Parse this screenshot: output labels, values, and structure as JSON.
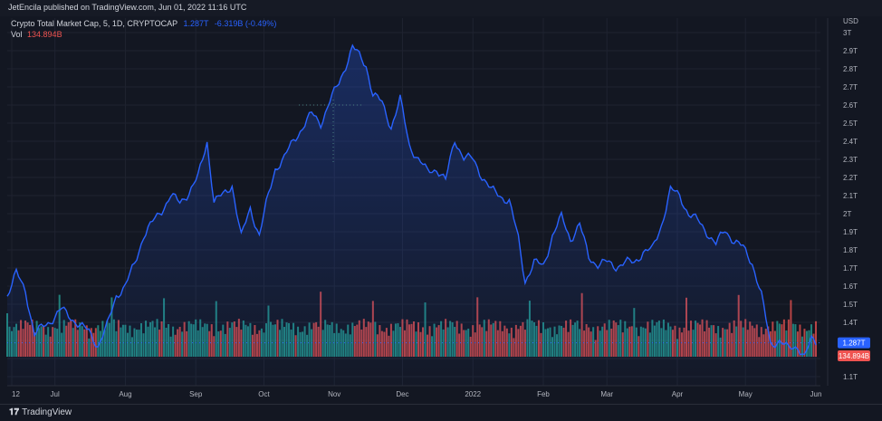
{
  "header": {
    "published": "JetEncila published on TradingView.com, Jun 01, 2022 11:16 UTC"
  },
  "legend": {
    "symbol": "Crypto Total Market Cap, 5, 1D, CRYPTOCAP",
    "price": "1.287T",
    "change": "-6.319B (-0.49%)",
    "vol_label": "Vol",
    "vol_value": "134.894B"
  },
  "footer": {
    "brand": "TradingView"
  },
  "colors": {
    "line": "#2962ff",
    "vol_up": "#26a69a",
    "vol_down": "#ef5350",
    "price_badge": "#2962ff",
    "vol_badge": "#ef5350"
  },
  "chart_data": {
    "type": "line",
    "axis_currency": "USD",
    "y_ticks": [
      "1.1T",
      "1.2T",
      "1.3T",
      "1.4T",
      "1.5T",
      "1.6T",
      "1.7T",
      "1.8T",
      "1.9T",
      "2T",
      "2.1T",
      "2.2T",
      "2.3T",
      "2.4T",
      "2.5T",
      "2.6T",
      "2.7T",
      "2.8T",
      "2.9T",
      "3T"
    ],
    "ylim": [
      1.05,
      3.08
    ],
    "x_ticks": [
      "12",
      "Jul",
      "Aug",
      "Sep",
      "Oct",
      "Nov",
      "Dec",
      "2022",
      "Feb",
      "Mar",
      "Apr",
      "May",
      "Jun"
    ],
    "x_tick_dates": [
      "2021-06-12",
      "2021-07-01",
      "2021-08-01",
      "2021-09-01",
      "2021-10-01",
      "2021-11-01",
      "2021-12-01",
      "2022-01-01",
      "2022-02-01",
      "2022-03-01",
      "2022-04-01",
      "2022-05-01",
      "2022-06-01"
    ],
    "xlim": [
      "2021-06-10",
      "2022-06-03"
    ],
    "series": [
      {
        "points": [
          [
            "2021-06-10",
            1.55
          ],
          [
            "2021-06-14",
            1.67
          ],
          [
            "2021-06-18",
            1.58
          ],
          [
            "2021-06-22",
            1.33
          ],
          [
            "2021-06-26",
            1.38
          ],
          [
            "2021-06-30",
            1.42
          ],
          [
            "2021-07-04",
            1.47
          ],
          [
            "2021-07-08",
            1.43
          ],
          [
            "2021-07-12",
            1.38
          ],
          [
            "2021-07-16",
            1.35
          ],
          [
            "2021-07-20",
            1.27
          ],
          [
            "2021-07-24",
            1.38
          ],
          [
            "2021-07-28",
            1.55
          ],
          [
            "2021-08-01",
            1.6
          ],
          [
            "2021-08-05",
            1.72
          ],
          [
            "2021-08-09",
            1.88
          ],
          [
            "2021-08-13",
            1.95
          ],
          [
            "2021-08-17",
            2.02
          ],
          [
            "2021-08-21",
            2.1
          ],
          [
            "2021-08-25",
            2.06
          ],
          [
            "2021-08-29",
            2.12
          ],
          [
            "2021-09-02",
            2.2
          ],
          [
            "2021-09-06",
            2.4
          ],
          [
            "2021-09-09",
            2.07
          ],
          [
            "2021-09-13",
            2.1
          ],
          [
            "2021-09-17",
            2.16
          ],
          [
            "2021-09-21",
            1.87
          ],
          [
            "2021-09-25",
            2.03
          ],
          [
            "2021-09-29",
            1.88
          ],
          [
            "2021-10-02",
            2.05
          ],
          [
            "2021-10-06",
            2.25
          ],
          [
            "2021-10-10",
            2.31
          ],
          [
            "2021-10-14",
            2.4
          ],
          [
            "2021-10-18",
            2.48
          ],
          [
            "2021-10-22",
            2.55
          ],
          [
            "2021-10-26",
            2.5
          ],
          [
            "2021-10-30",
            2.62
          ],
          [
            "2021-11-03",
            2.72
          ],
          [
            "2021-11-06",
            2.82
          ],
          [
            "2021-11-09",
            2.92
          ],
          [
            "2021-11-12",
            2.87
          ],
          [
            "2021-11-15",
            2.82
          ],
          [
            "2021-11-18",
            2.66
          ],
          [
            "2021-11-22",
            2.61
          ],
          [
            "2021-11-26",
            2.48
          ],
          [
            "2021-11-30",
            2.63
          ],
          [
            "2021-12-04",
            2.38
          ],
          [
            "2021-12-08",
            2.3
          ],
          [
            "2021-12-12",
            2.23
          ],
          [
            "2021-12-16",
            2.25
          ],
          [
            "2021-12-20",
            2.18
          ],
          [
            "2021-12-24",
            2.41
          ],
          [
            "2021-12-28",
            2.31
          ],
          [
            "2022-01-01",
            2.3
          ],
          [
            "2022-01-05",
            2.21
          ],
          [
            "2022-01-09",
            2.13
          ],
          [
            "2022-01-13",
            2.1
          ],
          [
            "2022-01-17",
            2.07
          ],
          [
            "2022-01-21",
            1.86
          ],
          [
            "2022-01-24",
            1.63
          ],
          [
            "2022-01-28",
            1.73
          ],
          [
            "2022-02-01",
            1.71
          ],
          [
            "2022-02-05",
            1.88
          ],
          [
            "2022-02-09",
            1.98
          ],
          [
            "2022-02-13",
            1.86
          ],
          [
            "2022-02-17",
            1.94
          ],
          [
            "2022-02-21",
            1.76
          ],
          [
            "2022-02-25",
            1.72
          ],
          [
            "2022-03-01",
            1.73
          ],
          [
            "2022-03-05",
            1.71
          ],
          [
            "2022-03-09",
            1.73
          ],
          [
            "2022-03-13",
            1.73
          ],
          [
            "2022-03-17",
            1.79
          ],
          [
            "2022-03-21",
            1.8
          ],
          [
            "2022-03-25",
            1.94
          ],
          [
            "2022-03-29",
            2.13
          ],
          [
            "2022-04-02",
            2.1
          ],
          [
            "2022-04-06",
            2.0
          ],
          [
            "2022-04-10",
            1.96
          ],
          [
            "2022-04-14",
            1.9
          ],
          [
            "2022-04-18",
            1.83
          ],
          [
            "2022-04-22",
            1.91
          ],
          [
            "2022-04-26",
            1.85
          ],
          [
            "2022-04-30",
            1.81
          ],
          [
            "2022-05-04",
            1.73
          ],
          [
            "2022-05-08",
            1.55
          ],
          [
            "2022-05-12",
            1.28
          ],
          [
            "2022-05-16",
            1.3
          ],
          [
            "2022-05-20",
            1.25
          ],
          [
            "2022-05-24",
            1.27
          ],
          [
            "2022-05-27",
            1.21
          ],
          [
            "2022-05-30",
            1.3
          ],
          [
            "2022-06-01",
            1.287
          ]
        ]
      }
    ],
    "volume": {
      "series_name": "Vol",
      "last_value": "134.894B"
    },
    "last_price_label": "1.287T",
    "last_vol_label": "134.894B",
    "grid": true
  }
}
